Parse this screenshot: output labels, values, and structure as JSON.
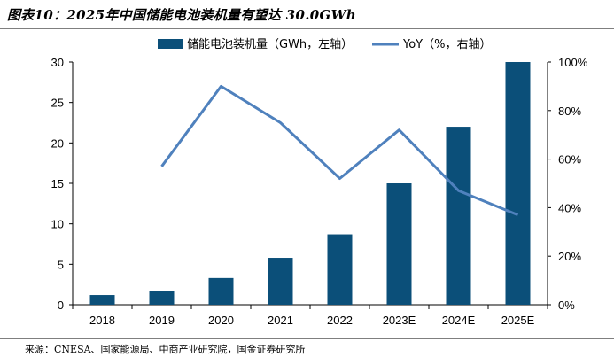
{
  "header": {
    "title": "图表10：2025年中国储能电池装机量有望达 30.0GWh"
  },
  "footer": {
    "source": "来源：CNESA、国家能源局、中商产业研究院，国金证券研究所"
  },
  "colors": {
    "bar": "#0b4f79",
    "line": "#4f81bd"
  },
  "chart_data": {
    "type": "bar",
    "categories": [
      "2018",
      "2019",
      "2020",
      "2021",
      "2022",
      "2023E",
      "2024E",
      "2025E"
    ],
    "series": [
      {
        "name": "储能电池装机量（GWh，左轴）",
        "type": "bar",
        "axis": "left",
        "values": [
          1.2,
          1.7,
          3.3,
          5.8,
          8.7,
          15.0,
          22.0,
          30.0
        ]
      },
      {
        "name": "YoY（%，右轴）",
        "type": "line",
        "axis": "right",
        "values": [
          null,
          0.57,
          0.9,
          0.75,
          0.52,
          0.72,
          0.47,
          0.37
        ]
      }
    ],
    "left_axis": {
      "min": 0,
      "max": 30,
      "ticks": [
        "0",
        "5",
        "10",
        "15",
        "20",
        "25",
        "30"
      ]
    },
    "right_axis": {
      "min": 0,
      "max": 1,
      "ticks": [
        "0%",
        "20%",
        "40%",
        "60%",
        "80%",
        "100%"
      ]
    },
    "legend_position": "top",
    "grid": false
  }
}
